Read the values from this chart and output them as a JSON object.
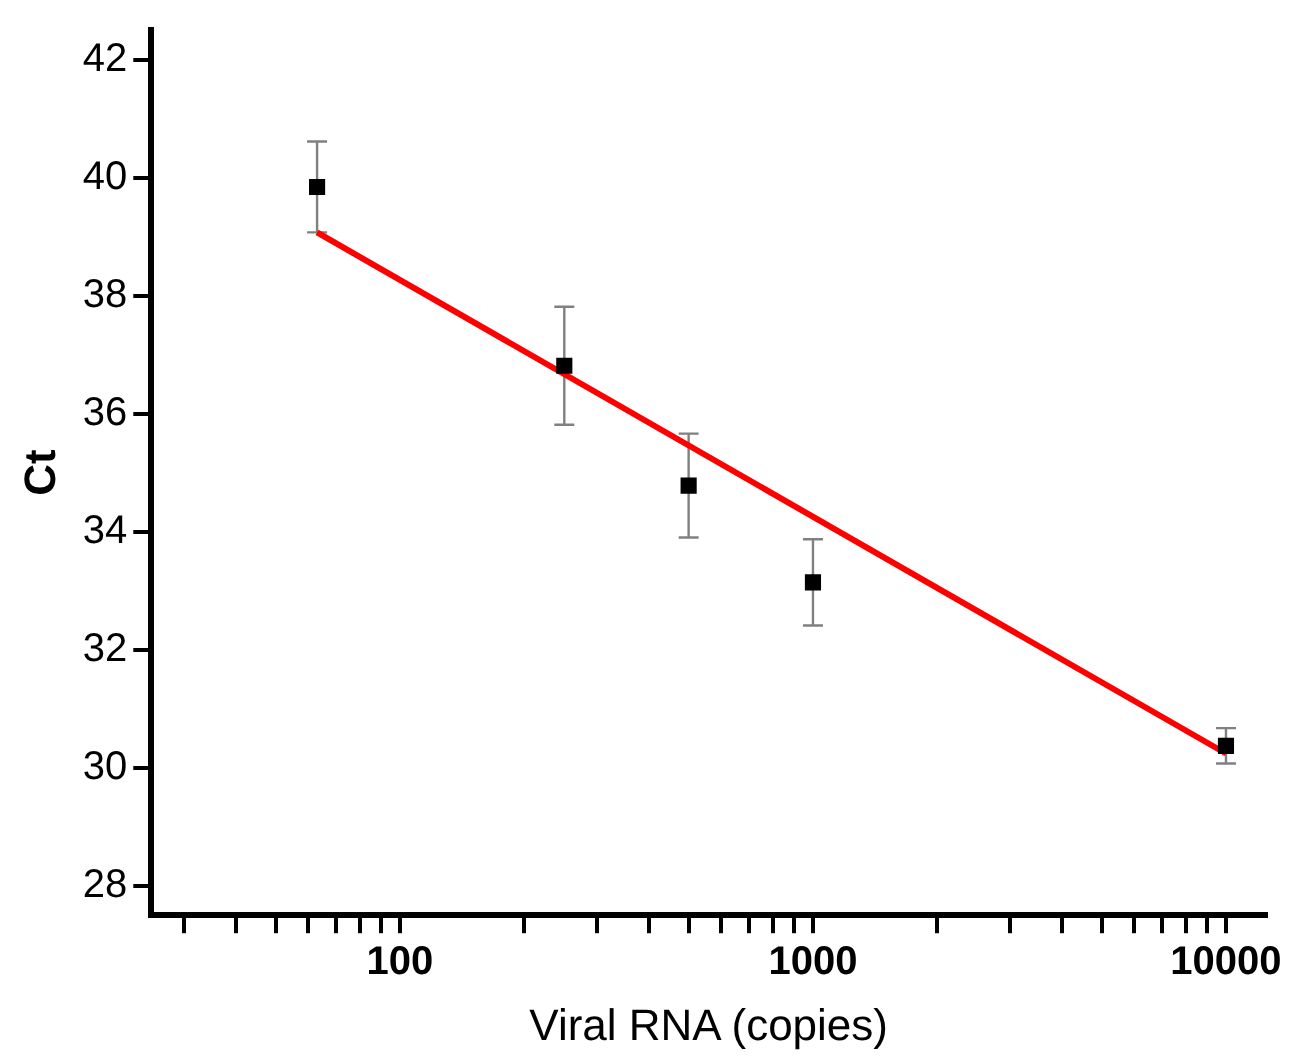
{
  "chart_data": {
    "type": "scatter",
    "xlabel": "Viral RNA (copies)",
    "ylabel": "Ct",
    "log": "x",
    "grid": false,
    "legend": false,
    "xlim": [
      25,
      12500
    ],
    "ylim": [
      27.5,
      42.5
    ],
    "xticks": [
      {
        "value": 30,
        "label": null
      },
      {
        "value": 40,
        "label": null
      },
      {
        "value": 50,
        "label": null
      },
      {
        "value": 60,
        "label": null
      },
      {
        "value": 70,
        "label": null
      },
      {
        "value": 80,
        "label": null
      },
      {
        "value": 90,
        "label": null
      },
      100,
      {
        "value": 200,
        "label": null
      },
      {
        "value": 300,
        "label": null
      },
      {
        "value": 400,
        "label": null
      },
      {
        "value": 500,
        "label": null
      },
      {
        "value": 600,
        "label": null
      },
      {
        "value": 700,
        "label": null
      },
      {
        "value": 800,
        "label": null
      },
      {
        "value": 900,
        "label": null
      },
      1000,
      {
        "value": 2000,
        "label": null
      },
      {
        "value": 3000,
        "label": null
      },
      {
        "value": 4000,
        "label": null
      },
      {
        "value": 5000,
        "label": null
      },
      {
        "value": 6000,
        "label": null
      },
      {
        "value": 7000,
        "label": null
      },
      {
        "value": 8000,
        "label": null
      },
      {
        "value": 9000,
        "label": null
      },
      10000
    ],
    "yticks": [
      28,
      30,
      32,
      34,
      36,
      38,
      40,
      42
    ],
    "series": [
      {
        "type": "scatter",
        "color": "#000000",
        "marker": "square",
        "x": [
          63,
          250,
          500,
          1000,
          10000
        ],
        "values": [
          39.84,
          36.81,
          34.78,
          33.14,
          30.37
        ],
        "errors": [
          0.77,
          1.0,
          0.88,
          0.73,
          0.3
        ]
      },
      {
        "type": "line",
        "color": "#ff0000",
        "marker": "none",
        "line_style": "solid",
        "x": [
          63,
          10000
        ],
        "values": [
          39.07,
          30.24
        ]
      }
    ]
  }
}
